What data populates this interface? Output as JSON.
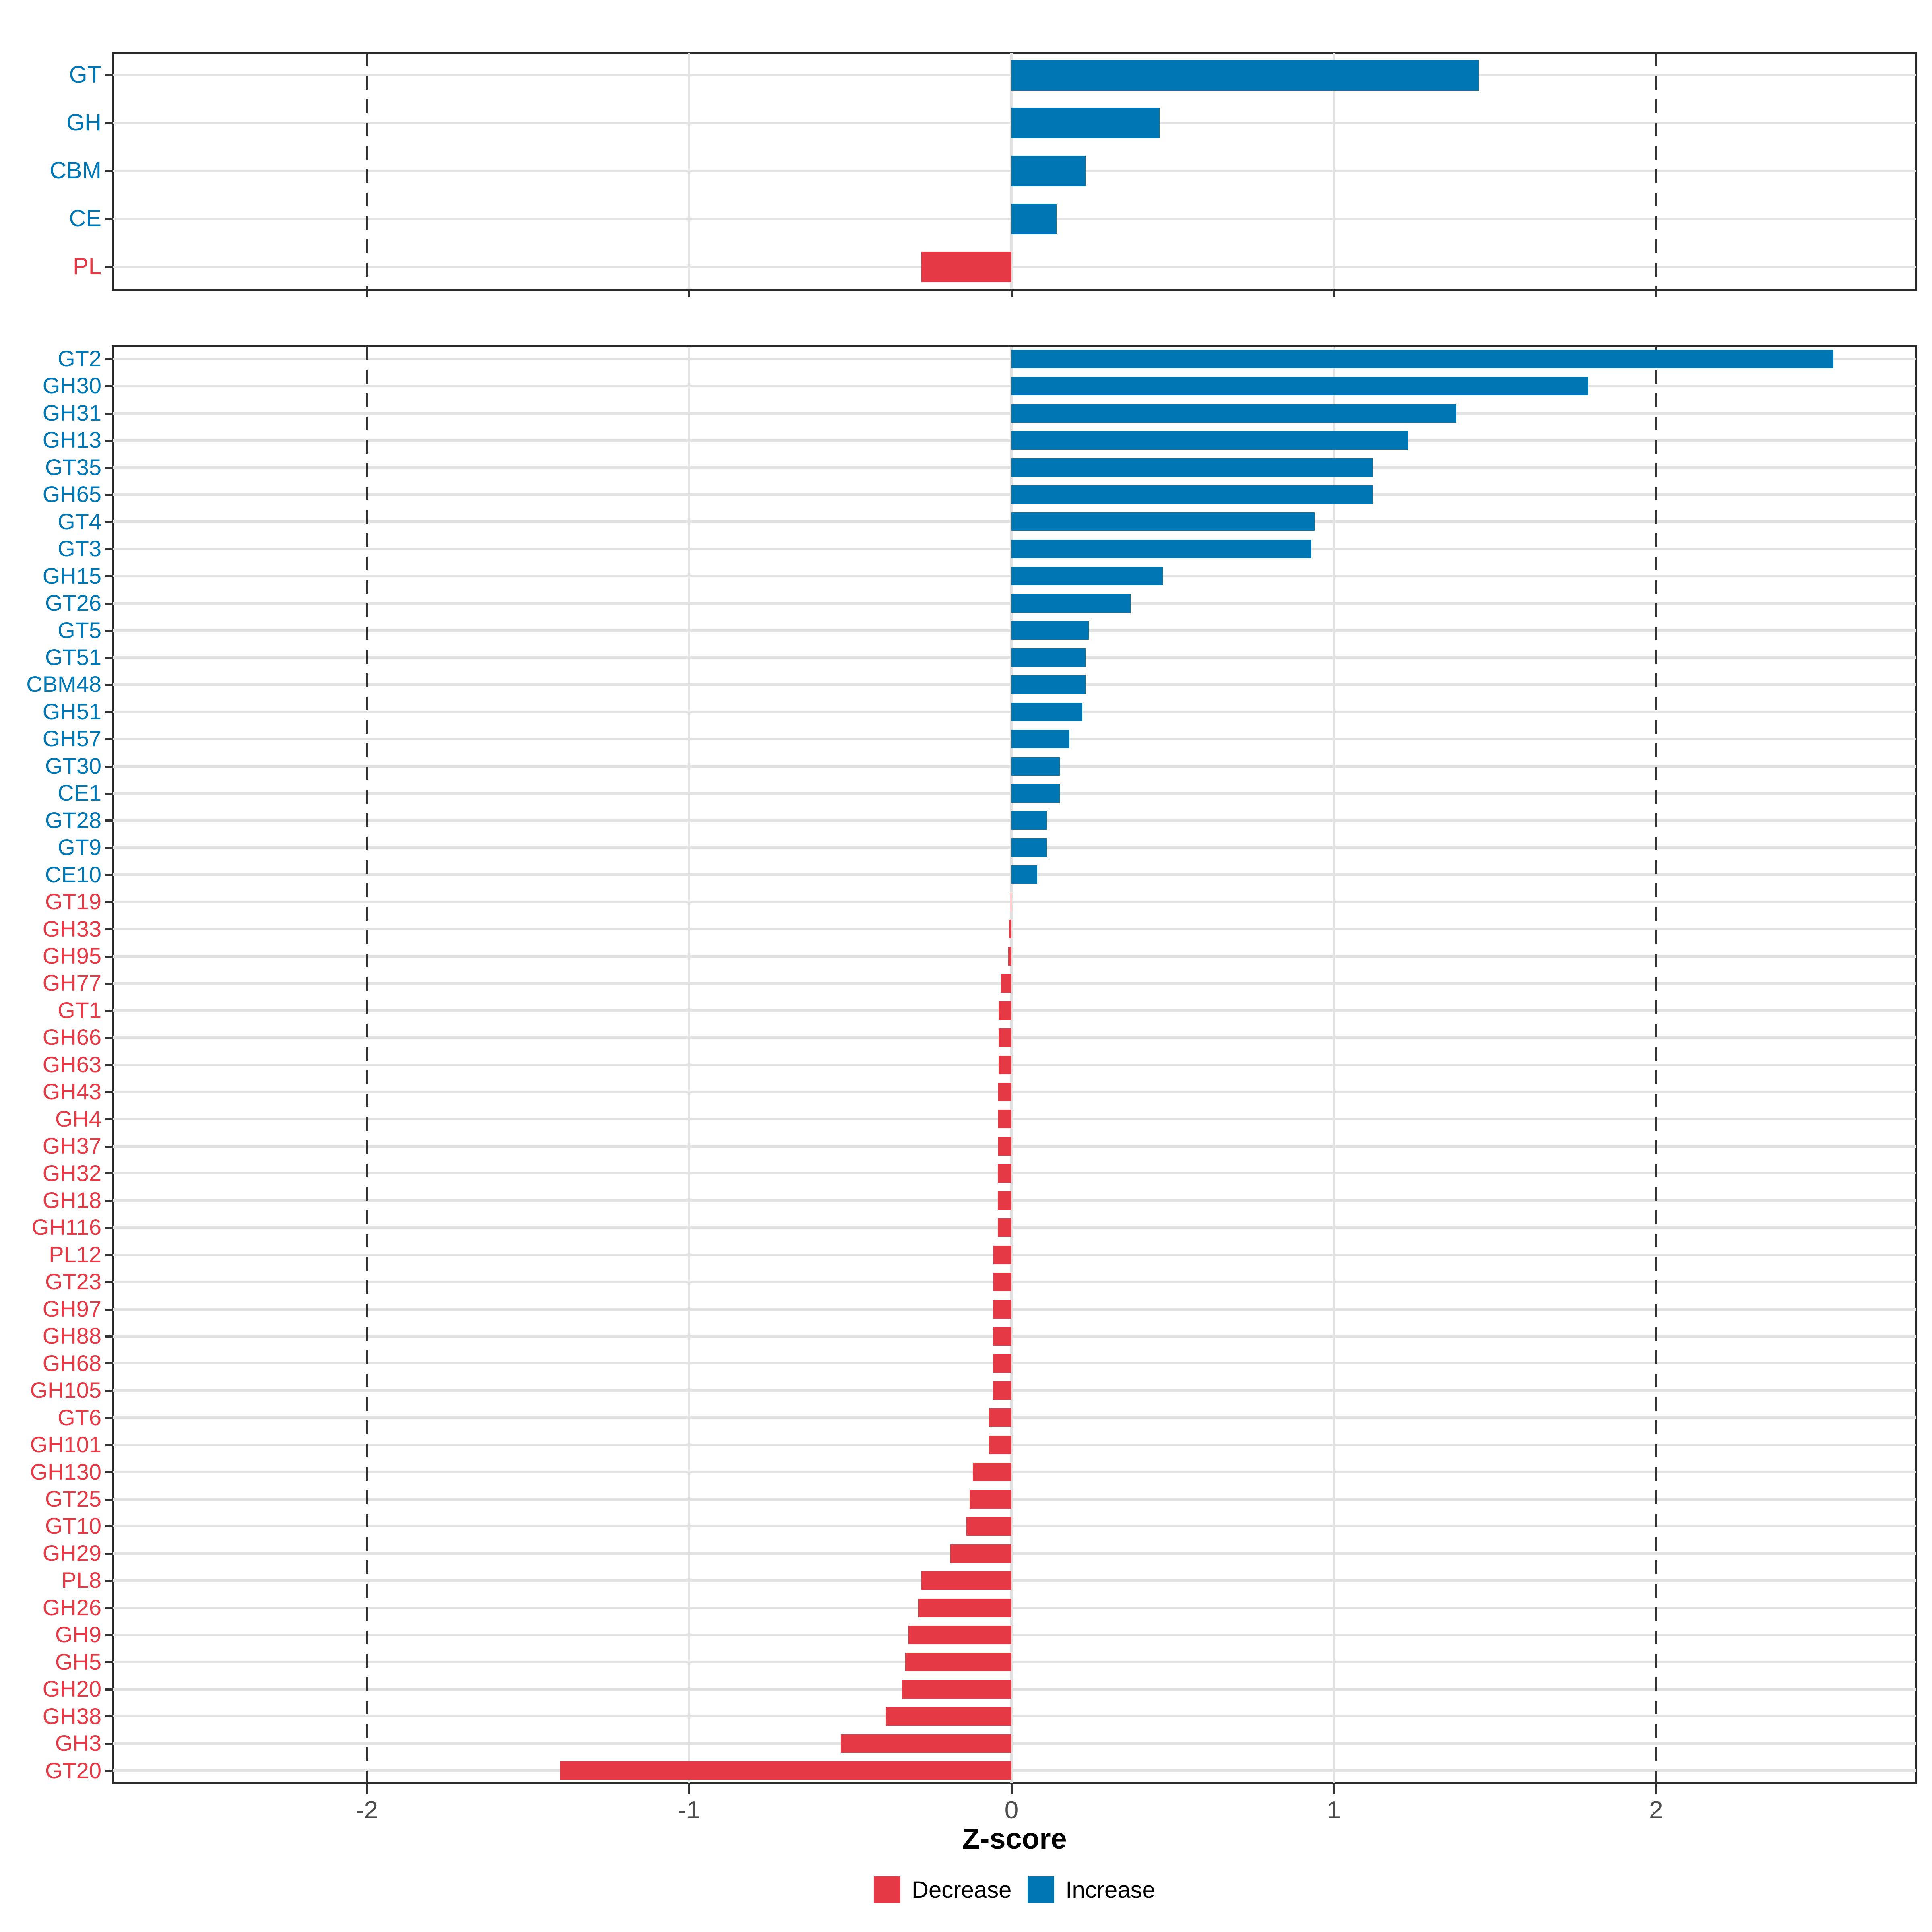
{
  "xlabel": "Z-score",
  "colors": {
    "increase": "#0077B5",
    "decrease": "#E63946"
  },
  "legend": {
    "items": [
      {
        "label": "Decrease",
        "color": "#E63946"
      },
      {
        "label": "Increase",
        "color": "#0077B5"
      }
    ]
  },
  "chart_data": [
    {
      "type": "bar",
      "panel": "top",
      "orientation": "horizontal",
      "title": "",
      "xlabel": "Z-score",
      "xlim": [
        -2.79,
        2.81
      ],
      "xticks": [
        -2,
        -1,
        0,
        1,
        2
      ],
      "gridlines_x": [
        -1,
        0,
        1
      ],
      "vlines_dashed": [
        -2,
        2
      ],
      "grid": "on",
      "categories": [
        "GT",
        "GH",
        "CBM",
        "CE",
        "PL"
      ],
      "values": [
        1.45,
        0.46,
        0.23,
        0.14,
        -0.28
      ]
    },
    {
      "type": "bar",
      "panel": "bottom",
      "orientation": "horizontal",
      "title": "",
      "xlabel": "Z-score",
      "xlim": [
        -2.79,
        2.81
      ],
      "xticks": [
        -2,
        -1,
        0,
        1,
        2
      ],
      "gridlines_x": [
        -1,
        0,
        1
      ],
      "vlines_dashed": [
        -2,
        2
      ],
      "grid": "on",
      "categories": [
        "GT2",
        "GH30",
        "GH31",
        "GH13",
        "GT35",
        "GH65",
        "GT4",
        "GT3",
        "GH15",
        "GT26",
        "GT5",
        "GT51",
        "CBM48",
        "GH51",
        "GH57",
        "GT30",
        "CE1",
        "GT28",
        "GT9",
        "CE10",
        "GT19",
        "GH33",
        "GH95",
        "GH77",
        "GT1",
        "GH66",
        "GH63",
        "GH43",
        "GH4",
        "GH37",
        "GH32",
        "GH18",
        "GH116",
        "PL12",
        "GT23",
        "GH97",
        "GH88",
        "GH68",
        "GH105",
        "GT6",
        "GH101",
        "GH130",
        "GT25",
        "GT10",
        "GH29",
        "PL8",
        "GH26",
        "GH9",
        "GH5",
        "GH20",
        "GH38",
        "GH3",
        "GT20"
      ],
      "values": [
        2.55,
        1.79,
        1.38,
        1.23,
        1.12,
        1.12,
        0.94,
        0.93,
        0.47,
        0.37,
        0.24,
        0.23,
        0.23,
        0.22,
        0.18,
        0.15,
        0.15,
        0.11,
        0.11,
        0.08,
        -0.002,
        -0.008,
        -0.01,
        -0.033,
        -0.04,
        -0.04,
        -0.04,
        -0.041,
        -0.041,
        -0.041,
        -0.042,
        -0.042,
        -0.042,
        -0.056,
        -0.056,
        -0.057,
        -0.057,
        -0.058,
        -0.058,
        -0.07,
        -0.07,
        -0.12,
        -0.13,
        -0.14,
        -0.19,
        -0.28,
        -0.29,
        -0.32,
        -0.33,
        -0.34,
        -0.39,
        -0.53,
        -1.4
      ]
    }
  ]
}
